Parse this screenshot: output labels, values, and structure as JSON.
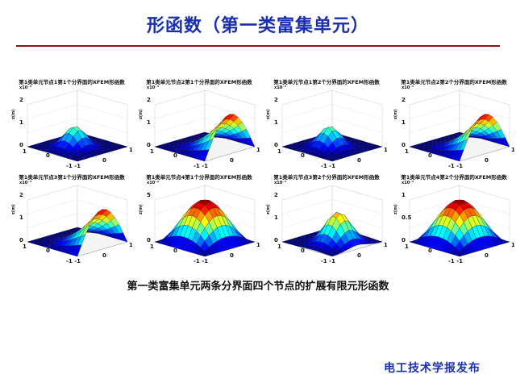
{
  "slide": {
    "title": "形函数（第一类富集单元）",
    "caption": "第一类富集单元两条分界面四个节点的扩展有限元形函数",
    "footer": "电工技术学报发布"
  },
  "colors": {
    "title": "#1a2fb0",
    "rule": "#9b1010",
    "footer": "#1a2fb0"
  },
  "panels": [
    {
      "title": "第1类单元节点1第1个分界面的XFEM形函数",
      "zlabel": "z(m)",
      "xlabel": "x(m)",
      "ylabel": "y(m)",
      "exponent": "x10⁻³",
      "zticks": [
        "2",
        "1",
        "0"
      ],
      "xticks": [
        "-1",
        "1"
      ],
      "yticks": [
        "1",
        "0",
        "-1"
      ],
      "peak": "center-low"
    },
    {
      "title": "第1类单元节点2第1个分界面的XFEM形函数",
      "zlabel": "z(m)",
      "xlabel": "x(m)",
      "ylabel": "y(m)",
      "exponent": "x10⁻³",
      "zticks": [
        "2",
        "1",
        "0"
      ],
      "xticks": [
        "-1",
        "1"
      ],
      "yticks": [
        "1",
        "0",
        "-1"
      ],
      "peak": "right"
    },
    {
      "title": "第1类单元节点1第2个分界面的XFEM形函数",
      "zlabel": "z(m)",
      "xlabel": "x(m)",
      "ylabel": "y(m)",
      "exponent": "x10⁻³",
      "zticks": [
        "2",
        "1",
        "0"
      ],
      "xticks": [
        "-1",
        "1"
      ],
      "yticks": [
        "1",
        "0",
        "-1"
      ],
      "peak": "center-low"
    },
    {
      "title": "第1类单元节点2第2个分界面的XFEM形函数",
      "zlabel": "z(m)",
      "xlabel": "x(m)",
      "ylabel": "y(m)",
      "exponent": "x10⁻³",
      "zticks": [
        "2",
        "1",
        "0"
      ],
      "xticks": [
        "-1",
        "1"
      ],
      "yticks": [
        "1",
        "0",
        "-1"
      ],
      "peak": "right"
    },
    {
      "title": "第1类单元节点3第1个分界面的XFEM形函数",
      "zlabel": "z(m)",
      "xlabel": "x(m)",
      "ylabel": "y(m)",
      "exponent": "x10⁻³",
      "zticks": [
        "2",
        "1",
        "0"
      ],
      "xticks": [
        "-1",
        "1"
      ],
      "yticks": [
        "1",
        "0",
        "-1"
      ],
      "peak": "right"
    },
    {
      "title": "第1类单元节点4第1个分界面的XFEM形函数",
      "zlabel": "z(m)",
      "xlabel": "x(m)",
      "ylabel": "y(m)",
      "exponent": "x10⁻⁴",
      "zticks": [
        "5",
        "0"
      ],
      "xticks": [
        "-1",
        "1"
      ],
      "yticks": [
        "1",
        "0",
        "-1"
      ],
      "peak": "center"
    },
    {
      "title": "第1类单元节点3第2个分界面的XFEM形函数",
      "zlabel": "z(m)",
      "xlabel": "x(m)",
      "ylabel": "y(m)",
      "exponent": "x10⁻³",
      "zticks": [
        "2",
        "1",
        "0"
      ],
      "xticks": [
        "-1",
        "1"
      ],
      "yticks": [
        "1",
        "0",
        "-1"
      ],
      "peak": "center-right"
    },
    {
      "title": "第1类单元节点4第2个分界面的XFEM形函数",
      "zlabel": "z(m)",
      "xlabel": "x(m)",
      "ylabel": "y(m)",
      "exponent": "x10⁻³",
      "zticks": [
        "1",
        "0.5",
        "0"
      ],
      "xticks": [
        "-1",
        "1"
      ],
      "yticks": [
        "1",
        "0",
        "-1"
      ],
      "peak": "center"
    }
  ]
}
